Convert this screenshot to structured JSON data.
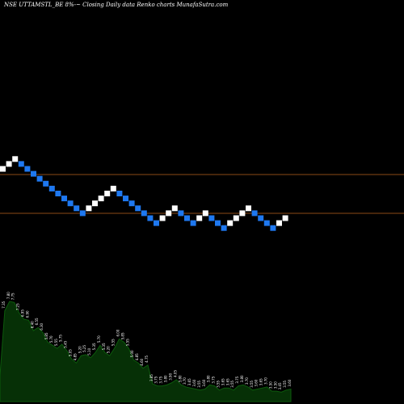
{
  "header": {
    "title": "NSE UTTAMSTL_BE 8%-~ Closing Daily data Renko charts MunafaSutra.com"
  },
  "colors": {
    "background": "#000000",
    "up_brick": "#ffffff",
    "down_brick": "#1e78f0",
    "reference_line": "#8b4a16",
    "area_fill": "#063006",
    "area_line": "#0c5a0c",
    "label_text": "#ffffff"
  },
  "chart_data": [
    {
      "type": "renko",
      "title": "NSE UTTAMSTL_BE 8%-~ Closing Daily data Renko charts MunafaSutra.com",
      "brick_direction": [
        "up",
        "up",
        "up",
        "down",
        "down",
        "down",
        "down",
        "down",
        "down",
        "down",
        "down",
        "down",
        "down",
        "down",
        "up",
        "up",
        "up",
        "up",
        "up",
        "down",
        "down",
        "down",
        "down",
        "down",
        "down",
        "down",
        "up",
        "up",
        "up",
        "down",
        "down",
        "down",
        "up",
        "up",
        "down",
        "down",
        "down",
        "up",
        "up",
        "up",
        "up",
        "down",
        "down",
        "down",
        "down",
        "up",
        "up"
      ],
      "brick_level": [
        10,
        11,
        12,
        11,
        10,
        9,
        8,
        7,
        6,
        5,
        4,
        3,
        2,
        1,
        2,
        3,
        4,
        5,
        6,
        5,
        4,
        3,
        2,
        1,
        0,
        -1,
        0,
        1,
        2,
        1,
        0,
        -1,
        0,
        1,
        0,
        -1,
        -2,
        -1,
        0,
        1,
        2,
        1,
        0,
        -1,
        -2,
        -1,
        0
      ],
      "reference_lines": [
        "upper",
        "lower"
      ],
      "grid": false,
      "legend": "none"
    },
    {
      "type": "area",
      "labels": [
        "4.25",
        "7.35",
        "7.80",
        "7.75",
        "7.25",
        "6.95",
        "6.90",
        "6.40",
        "6.55",
        "6.30",
        "5.85",
        "5.70",
        "5.55",
        "5.75",
        "5.45",
        "5.05",
        "4.85",
        "5.20",
        "5.25",
        "5.10",
        "5.35",
        "5.70",
        "5.35",
        "5.20",
        "5.55",
        "6.00",
        "5.85",
        "5.55",
        "5.00",
        "4.85",
        "4.60",
        "4.75",
        "3.85",
        "3.75",
        "3.75",
        "3.80",
        "3.90",
        "4.05",
        "3.80",
        "3.70",
        "3.65",
        "3.60",
        "3.55",
        "3.60",
        "3.80",
        "3.75",
        "3.55",
        "3.65",
        "3.65",
        "3.55",
        "3.75",
        "3.80",
        "3.70",
        "3.55",
        "3.60",
        "3.65",
        "3.70",
        "3.50",
        "3.50",
        "3.45",
        "3.55",
        "3.60"
      ],
      "values": [
        4.25,
        7.35,
        7.8,
        7.75,
        7.25,
        6.95,
        6.9,
        6.4,
        6.55,
        6.3,
        5.85,
        5.7,
        5.55,
        5.75,
        5.45,
        5.05,
        4.85,
        5.2,
        5.25,
        5.1,
        5.35,
        5.7,
        5.35,
        5.2,
        5.55,
        6.0,
        5.85,
        5.55,
        5.0,
        4.85,
        4.6,
        4.75,
        3.85,
        3.75,
        3.75,
        3.8,
        3.9,
        4.05,
        3.8,
        3.7,
        3.65,
        3.6,
        3.55,
        3.6,
        3.8,
        3.75,
        3.55,
        3.65,
        3.65,
        3.55,
        3.75,
        3.8,
        3.7,
        3.55,
        3.6,
        3.65,
        3.7,
        3.5,
        3.5,
        3.45,
        3.55,
        3.6
      ],
      "ylim": [
        3.0,
        8.5
      ],
      "grid": false,
      "legend": "none"
    }
  ]
}
